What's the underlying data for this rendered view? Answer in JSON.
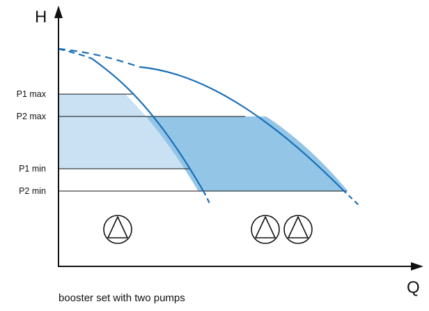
{
  "diagram": {
    "axes": {
      "y_label": "H",
      "x_label": "Q"
    },
    "pressure_levels": [
      {
        "label": "P1 max"
      },
      {
        "label": "P2 max"
      },
      {
        "label": "P1 min"
      },
      {
        "label": "P2 min"
      }
    ],
    "regions": {
      "one_pump_color": "#c9e1f3",
      "two_pumps_color": "#93c5e6"
    },
    "curve_color": "#1a6fb8",
    "pump_groups": [
      {
        "name": "single-pump",
        "count": 1
      },
      {
        "name": "two-pumps",
        "count": 2
      }
    ],
    "caption": "booster set with two pumps"
  }
}
